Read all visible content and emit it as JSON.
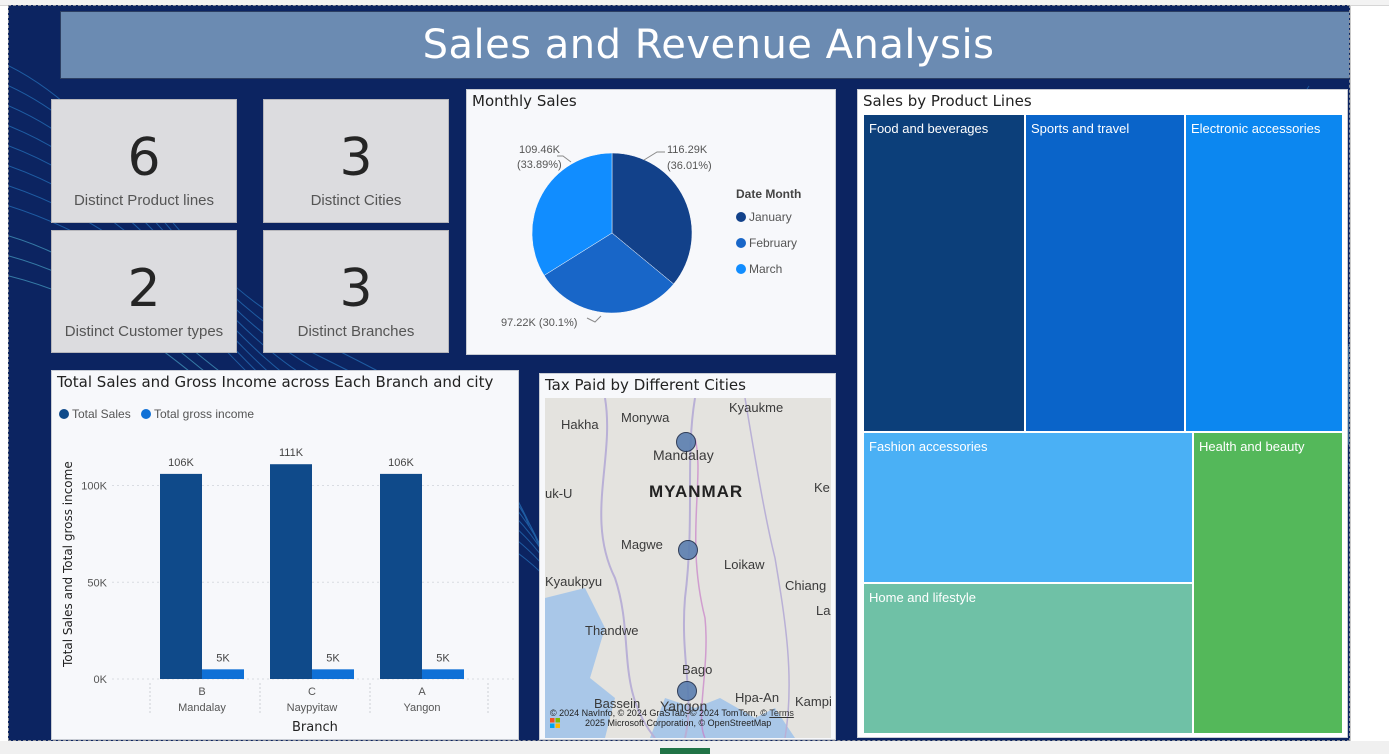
{
  "report": {
    "title": "Sales and Revenue Analysis"
  },
  "cards": [
    {
      "value": "6",
      "label": "Distinct Product lines"
    },
    {
      "value": "3",
      "label": "Distinct Cities"
    },
    {
      "value": "2",
      "label": "Distinct Customer types"
    },
    {
      "value": "3",
      "label": "Distinct Branches"
    }
  ],
  "monthly_sales": {
    "title": "Monthly Sales",
    "legend_title": "Date Month",
    "legend_items": [
      "January",
      "February",
      "March"
    ],
    "labels": {
      "january": [
        "116.29K",
        "(36.01%)"
      ],
      "february": "97.22K (30.1%)",
      "march": [
        "109.46K",
        "(33.89%)"
      ]
    }
  },
  "branch_chart": {
    "title": "Total Sales and Gross Income across Each Branch and city",
    "legend": [
      "Total Sales",
      "Total gross income"
    ],
    "ylabel": "Total Sales and Total gross income",
    "xlabel": "Branch",
    "yticks": [
      "100K",
      "50K",
      "0K"
    ],
    "branches": [
      {
        "branch": "B",
        "city": "Mandalay",
        "sales_label": "106K",
        "income_label": "5K"
      },
      {
        "branch": "C",
        "city": "Naypyitaw",
        "sales_label": "111K",
        "income_label": "5K"
      },
      {
        "branch": "A",
        "city": "Yangon",
        "sales_label": "106K",
        "income_label": "5K"
      }
    ]
  },
  "chart_data": [
    {
      "type": "pie",
      "title": "Monthly Sales",
      "legend_title": "Date Month",
      "categories": [
        "January",
        "February",
        "March"
      ],
      "values": [
        116.29,
        97.22,
        109.46
      ],
      "percentages": [
        36.01,
        30.1,
        33.89
      ],
      "units": "K",
      "colors": [
        "#12418a",
        "#1866c8",
        "#118dff"
      ],
      "legend_placement": "right"
    },
    {
      "type": "bar",
      "title": "Total Sales and Gross Income across Each Branch and city",
      "categories": [
        "B Mandalay",
        "C Naypyitaw",
        "A Yangon"
      ],
      "series": [
        {
          "name": "Total Sales",
          "values": [
            106,
            111,
            106
          ],
          "color": "#0f4a8a"
        },
        {
          "name": "Total gross income",
          "values": [
            5,
            5,
            5
          ],
          "color": "#0f70d6"
        }
      ],
      "units": "K",
      "xlabel": "Branch",
      "ylabel": "Total Sales and Total gross income",
      "ylim": [
        0,
        120
      ],
      "yticks": [
        0,
        50,
        100
      ],
      "grid": true,
      "legend_placement": "top-left"
    },
    {
      "type": "treemap",
      "title": "Sales by Product Lines",
      "categories": [
        "Food and beverages",
        "Sports and travel",
        "Electronic accessories",
        "Fashion accessories",
        "Health and beauty",
        "Home and lifestyle"
      ]
    }
  ],
  "treemap": {
    "title": "Sales by Product Lines",
    "cells": [
      {
        "label": "Food and beverages",
        "color": "#0c3f7a"
      },
      {
        "label": "Sports and travel",
        "color": "#0a64c9"
      },
      {
        "label": "Electronic accessories",
        "color": "#0c87f0"
      },
      {
        "label": "Fashion accessories",
        "color": "#4ab0f5"
      },
      {
        "label": "Home and lifestyle",
        "color": "#6fc1a6"
      },
      {
        "label": "Health and beauty",
        "color": "#54b85a"
      }
    ]
  },
  "map": {
    "title": "Tax Paid by Different Cities",
    "country": "MYANMAR",
    "places": [
      "Monywa",
      "Kyaukme",
      "Hakha",
      "Mandalay",
      "uk-U",
      "Ke",
      "Magwe",
      "Loikaw",
      "Kyaukpyu",
      "Chiang",
      "La",
      "Thandwe",
      "Bago",
      "Bassein",
      "Hpa-An",
      "Kampi",
      "Yangon"
    ],
    "attribution_1": "© 2024 NavInfo, © 2024 GraSTab, © 2024 TomTom, ©",
    "attribution_terms": "Terms",
    "attribution_2": "2025 Microsoft Corporation, © OpenStreetMap"
  },
  "colors": {
    "background": "#0c2461",
    "title_banner": "#6b8bb2",
    "card": "#dcdcdf"
  }
}
